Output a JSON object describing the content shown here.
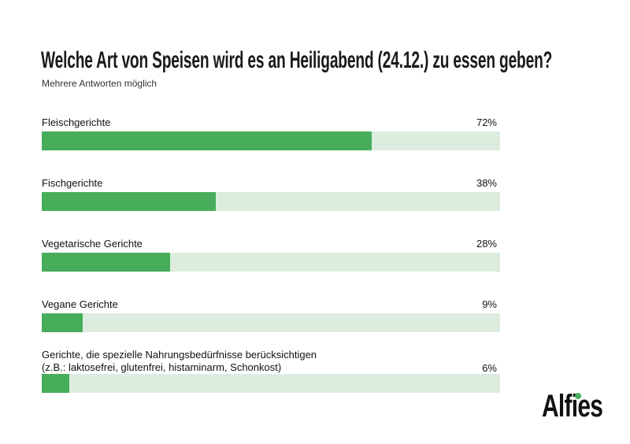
{
  "chart_data": {
    "type": "bar",
    "orientation": "horizontal",
    "title": "Welche Art von Speisen wird es an Heiligabend (24.12.) zu essen geben?",
    "subtitle": "Mehrere Antworten möglich",
    "categories": [
      "Fleischgerichte",
      "Fischgerichte",
      "Vegetarische Gerichte",
      "Vegane Gerichte",
      "Gerichte, die spezielle Nahrungsbedürfnisse berücksichtigen\n(z.B.: laktosefrei, glutenfrei, histaminarm, Schonkost)"
    ],
    "values": [
      72,
      38,
      28,
      9,
      6
    ],
    "value_labels": [
      "72%",
      "38%",
      "28%",
      "9%",
      "6%"
    ],
    "xlim": [
      0,
      100
    ],
    "colors": {
      "bar": "#47ad5a",
      "track": "#dcede0"
    }
  },
  "brand": {
    "logo": "Alfies",
    "accent": "#47ad5a"
  }
}
